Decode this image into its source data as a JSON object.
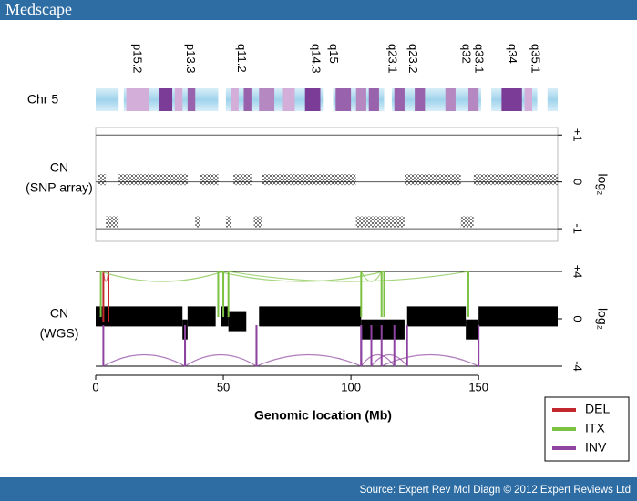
{
  "header": {
    "title": "Medscape"
  },
  "footer": {
    "source": "Source: Expert Rev Mol Diagn © 2012 Expert Reviews Ltd"
  },
  "chart_data": [
    {
      "type": "ideogram",
      "label": "Chr 5",
      "xlim": [
        0,
        181
      ],
      "band_labels": [
        {
          "label": "p15.2",
          "x": 16
        },
        {
          "label": "p13.3",
          "x": 37
        },
        {
          "label": "q11.2",
          "x": 57
        },
        {
          "label": "q14.3",
          "x": 86
        },
        {
          "label": "q15",
          "x": 93
        },
        {
          "label": "q23.1",
          "x": 116
        },
        {
          "label": "q23.2",
          "x": 124
        },
        {
          "label": "q32",
          "x": 145
        },
        {
          "label": "q33.1",
          "x": 150
        },
        {
          "label": "q34",
          "x": 163
        },
        {
          "label": "q35.1",
          "x": 172
        }
      ],
      "bands": [
        {
          "start": 9,
          "end": 11,
          "stain": 0
        },
        {
          "start": 12,
          "end": 21,
          "stain": 25
        },
        {
          "start": 25,
          "end": 30,
          "stain": 100
        },
        {
          "start": 31,
          "end": 34,
          "stain": 25
        },
        {
          "start": 36,
          "end": 39,
          "stain": 75
        },
        {
          "start": 48,
          "end": 51,
          "stain": 0
        },
        {
          "start": 53,
          "end": 56,
          "stain": 25
        },
        {
          "start": 58,
          "end": 61,
          "stain": 75
        },
        {
          "start": 64,
          "end": 70,
          "stain": 50
        },
        {
          "start": 73,
          "end": 78,
          "stain": 25
        },
        {
          "start": 82,
          "end": 88,
          "stain": 100
        },
        {
          "start": 89,
          "end": 93,
          "stain": 0
        },
        {
          "start": 94,
          "end": 100,
          "stain": 75
        },
        {
          "start": 102,
          "end": 106,
          "stain": 50
        },
        {
          "start": 107,
          "end": 111,
          "stain": 75
        },
        {
          "start": 113,
          "end": 116,
          "stain": 0
        },
        {
          "start": 117,
          "end": 121,
          "stain": 75
        },
        {
          "start": 125,
          "end": 129,
          "stain": 75
        },
        {
          "start": 137,
          "end": 141,
          "stain": 50
        },
        {
          "start": 146,
          "end": 150,
          "stain": 50
        },
        {
          "start": 151,
          "end": 155,
          "stain": 0
        },
        {
          "start": 159,
          "end": 167,
          "stain": 100
        },
        {
          "start": 168,
          "end": 171,
          "stain": 25
        },
        {
          "start": 173,
          "end": 177,
          "stain": 0
        }
      ]
    },
    {
      "type": "segments",
      "title": "CN",
      "subtitle": "(SNP array)",
      "ylabel": "log₂",
      "xlim": [
        0,
        181
      ],
      "ylim": [
        -1.27,
        1.16
      ],
      "yticks": [
        {
          "value": 1,
          "label": "+1"
        },
        0,
        -1
      ],
      "grid": true,
      "color": "#000000",
      "segments": [
        {
          "start": 1,
          "end": 4,
          "value": 0.05
        },
        {
          "start": 4,
          "end": 9,
          "value": -0.85
        },
        {
          "start": 9,
          "end": 36,
          "value": 0.05
        },
        {
          "start": 39,
          "end": 41,
          "value": -0.85
        },
        {
          "start": 41,
          "end": 48,
          "value": 0.05
        },
        {
          "start": 51,
          "end": 53,
          "value": -0.85
        },
        {
          "start": 54,
          "end": 61,
          "value": 0.05
        },
        {
          "start": 62,
          "end": 65,
          "value": -0.85
        },
        {
          "start": 65,
          "end": 102,
          "value": 0.05
        },
        {
          "start": 102,
          "end": 121,
          "value": -0.85
        },
        {
          "start": 121,
          "end": 143,
          "value": 0.05
        },
        {
          "start": 143,
          "end": 148,
          "value": -0.85
        },
        {
          "start": 148,
          "end": 181,
          "value": 0.05
        }
      ]
    },
    {
      "type": "segments-sv",
      "title": "CN",
      "subtitle": "(WGS)",
      "ylabel": "log₂",
      "xlabel": "Genomic location (Mb)",
      "xlim": [
        0,
        181
      ],
      "xticks": [
        0,
        50,
        100,
        150
      ],
      "ylim": [
        -4,
        4
      ],
      "yticks": [
        {
          "value": 4,
          "label": "+4"
        },
        0,
        -4
      ],
      "color": "#000000",
      "legend": "lower right",
      "segments": [
        {
          "start": 0,
          "end": 34,
          "value": 0.2
        },
        {
          "start": 34,
          "end": 36,
          "value": -0.9
        },
        {
          "start": 36,
          "end": 47,
          "value": 0.2
        },
        {
          "start": 49,
          "end": 52,
          "value": 0.2
        },
        {
          "start": 52,
          "end": 59,
          "value": -0.2
        },
        {
          "start": 64,
          "end": 104,
          "value": 0.2
        },
        {
          "start": 104,
          "end": 121,
          "value": -0.9
        },
        {
          "start": 122,
          "end": 145,
          "value": 0.2
        },
        {
          "start": 145,
          "end": 150,
          "value": -0.9
        },
        {
          "start": 150,
          "end": 181,
          "value": 0.2
        }
      ],
      "series": [
        {
          "name": "DEL",
          "color": "#c1272d",
          "breakpoints": [
            [
              3,
              5
            ]
          ]
        },
        {
          "name": "ITX",
          "color": "#7cc242",
          "breakpoints": [
            [
              2,
              50
            ],
            [
              48,
              113
            ],
            [
              52,
              146
            ],
            [
              104,
              112
            ]
          ]
        },
        {
          "name": "INV",
          "color": "#8e44a0",
          "breakpoints": [
            [
              3,
              35
            ],
            [
              35,
              63
            ],
            [
              63,
              104
            ],
            [
              104,
              117
            ],
            [
              108,
              122
            ],
            [
              112,
              150
            ]
          ]
        }
      ]
    }
  ]
}
